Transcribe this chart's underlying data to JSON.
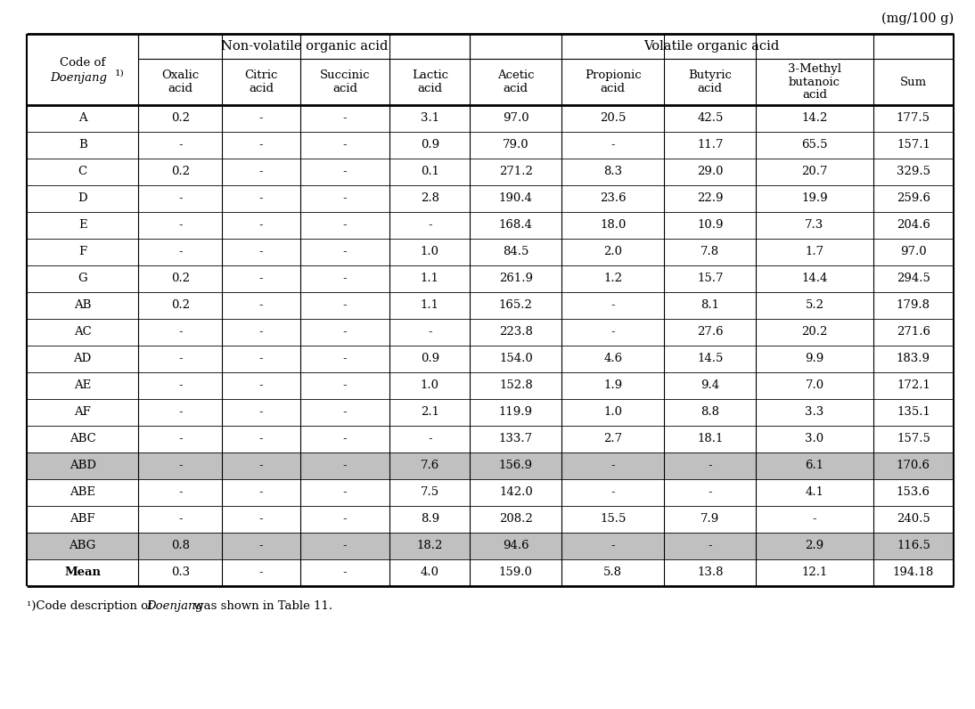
{
  "unit_label": "(mg/100 g)",
  "col_headers_row2": [
    "Code of\nDoenjang¹)",
    "Oxalic\nacid",
    "Citric\nacid",
    "Succinic\nacid",
    "Lactic\nacid",
    "Acetic\nacid",
    "Propionic\nacid",
    "Butyric\nacid",
    "3-Methyl\nbutanoic\nacid",
    "Sum"
  ],
  "nv_header": "Non-volatile organic acid",
  "v_header": "Volatile organic acid",
  "rows": [
    {
      "code": "A",
      "vals": [
        "0.2",
        "-",
        "-",
        "3.1",
        "97.0",
        "20.5",
        "42.5",
        "14.2",
        "177.5"
      ],
      "shaded": false
    },
    {
      "code": "B",
      "vals": [
        "-",
        "-",
        "-",
        "0.9",
        "79.0",
        "-",
        "11.7",
        "65.5",
        "157.1"
      ],
      "shaded": false
    },
    {
      "code": "C",
      "vals": [
        "0.2",
        "-",
        "-",
        "0.1",
        "271.2",
        "8.3",
        "29.0",
        "20.7",
        "329.5"
      ],
      "shaded": false
    },
    {
      "code": "D",
      "vals": [
        "-",
        "-",
        "-",
        "2.8",
        "190.4",
        "23.6",
        "22.9",
        "19.9",
        "259.6"
      ],
      "shaded": false
    },
    {
      "code": "E",
      "vals": [
        "-",
        "-",
        "-",
        "-",
        "168.4",
        "18.0",
        "10.9",
        "7.3",
        "204.6"
      ],
      "shaded": false
    },
    {
      "code": "F",
      "vals": [
        "-",
        "-",
        "-",
        "1.0",
        "84.5",
        "2.0",
        "7.8",
        "1.7",
        "97.0"
      ],
      "shaded": false
    },
    {
      "code": "G",
      "vals": [
        "0.2",
        "-",
        "-",
        "1.1",
        "261.9",
        "1.2",
        "15.7",
        "14.4",
        "294.5"
      ],
      "shaded": false
    },
    {
      "code": "AB",
      "vals": [
        "0.2",
        "-",
        "-",
        "1.1",
        "165.2",
        "-",
        "8.1",
        "5.2",
        "179.8"
      ],
      "shaded": false
    },
    {
      "code": "AC",
      "vals": [
        "-",
        "-",
        "-",
        "-",
        "223.8",
        "-",
        "27.6",
        "20.2",
        "271.6"
      ],
      "shaded": false
    },
    {
      "code": "AD",
      "vals": [
        "-",
        "-",
        "-",
        "0.9",
        "154.0",
        "4.6",
        "14.5",
        "9.9",
        "183.9"
      ],
      "shaded": false
    },
    {
      "code": "AE",
      "vals": [
        "-",
        "-",
        "-",
        "1.0",
        "152.8",
        "1.9",
        "9.4",
        "7.0",
        "172.1"
      ],
      "shaded": false
    },
    {
      "code": "AF",
      "vals": [
        "-",
        "-",
        "-",
        "2.1",
        "119.9",
        "1.0",
        "8.8",
        "3.3",
        "135.1"
      ],
      "shaded": false
    },
    {
      "code": "ABC",
      "vals": [
        "-",
        "-",
        "-",
        "-",
        "133.7",
        "2.7",
        "18.1",
        "3.0",
        "157.5"
      ],
      "shaded": false
    },
    {
      "code": "ABD",
      "vals": [
        "-",
        "-",
        "-",
        "7.6",
        "156.9",
        "-",
        "-",
        "6.1",
        "170.6"
      ],
      "shaded": true
    },
    {
      "code": "ABE",
      "vals": [
        "-",
        "-",
        "-",
        "7.5",
        "142.0",
        "-",
        "-",
        "4.1",
        "153.6"
      ],
      "shaded": false
    },
    {
      "code": "ABF",
      "vals": [
        "-",
        "-",
        "-",
        "8.9",
        "208.2",
        "15.5",
        "7.9",
        "-",
        "240.5"
      ],
      "shaded": false
    },
    {
      "code": "ABG",
      "vals": [
        "0.8",
        "-",
        "-",
        "18.2",
        "94.6",
        "-",
        "-",
        "2.9",
        "116.5"
      ],
      "shaded": true
    }
  ],
  "mean_row": {
    "code": "Mean",
    "vals": [
      "0.3",
      "-",
      "-",
      "4.0",
      "159.0",
      "5.8",
      "13.8",
      "12.1",
      "194.18"
    ]
  },
  "shaded_color": "#c0c0c0",
  "white_color": "#ffffff",
  "col_props": [
    0.1,
    0.075,
    0.07,
    0.08,
    0.072,
    0.082,
    0.092,
    0.082,
    0.105,
    0.072
  ]
}
